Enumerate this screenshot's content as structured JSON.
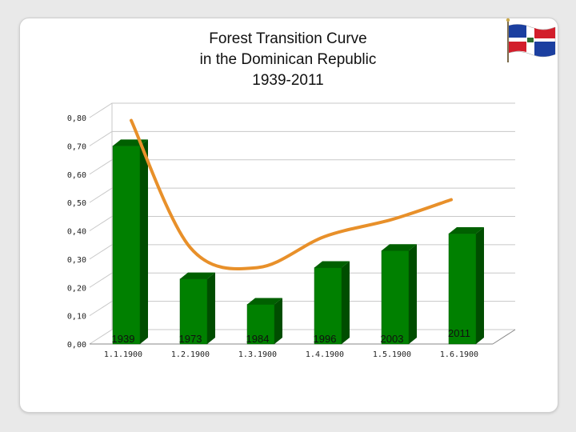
{
  "title": {
    "line1": "Forest Transition Curve",
    "line2": "in the Dominican Republic",
    "line3": "1939-2011"
  },
  "flag_icon": "dominican-republic-flag-icon",
  "colors": {
    "bar_front": "#008000",
    "bar_side": "#004d00",
    "bar_top": "#006000",
    "curve": "#e8902a",
    "grid": "#c8c8c8"
  },
  "chart_data": {
    "type": "bar",
    "categories": [
      "1.1.1900",
      "1.2.1900",
      "1.3.1900",
      "1.4.1900",
      "1.5.1900",
      "1.6.1900"
    ],
    "category_annotations": [
      "1939",
      "1973",
      "1984",
      "1996",
      "2003",
      "2011"
    ],
    "values": [
      0.7,
      0.23,
      0.14,
      0.27,
      0.33,
      0.39
    ],
    "ylim": [
      0,
      0.8
    ],
    "yticks": [
      "0,00",
      "0,10",
      "0,20",
      "0,30",
      "0,40",
      "0,50",
      "0,60",
      "0,70",
      "0,80"
    ],
    "grid": true,
    "curve": {
      "type": "line",
      "smooth": true,
      "values": [
        0.79,
        0.34,
        0.27,
        0.38,
        0.44,
        0.51
      ]
    }
  }
}
